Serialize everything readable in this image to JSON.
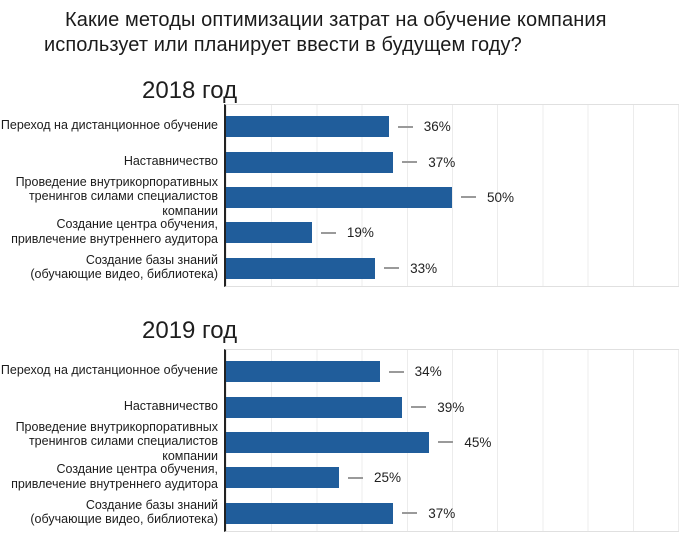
{
  "page": {
    "background": "#ffffff"
  },
  "title": {
    "text": "Какие методы оптимизации затрат на обучение компания использует или планирует ввести в будущем году?",
    "lines": [
      "Какие методы оптимизации затрат на обучение компания",
      "использует или планирует ввести в будущем году?"
    ]
  },
  "colors": {
    "bar": "#205d9b",
    "axis": "#222222",
    "gridline": "#ececec",
    "plot_border": "#e0e0e0",
    "leader_dash": "#9a9a9a",
    "text": "#1c1c1c"
  },
  "chart_data": [
    {
      "type": "bar",
      "orientation": "horizontal",
      "title": "2018 год",
      "categories": [
        "Переход на дистанционное обучение",
        "Наставничество",
        "Проведение внутрикорпоративных тренингов силами специалистов компании",
        "Создание центра обучения, привлечение внутреннего аудитора",
        "Создание базы знаний (обучающие видео, библиотека)"
      ],
      "category_lines": [
        [
          "Переход на дистанционное обучение"
        ],
        [
          "Наставничество"
        ],
        [
          "Проведение внутрикорпоративных",
          "тренингов силами специалистов",
          "компании"
        ],
        [
          "Создание центра обучения,",
          "привлечение внутреннего аудитора"
        ],
        [
          "Создание базы знаний",
          "(обучающие видео, библиотека)"
        ]
      ],
      "values": [
        36,
        37,
        50,
        19,
        33
      ],
      "value_labels": [
        "36%",
        "37%",
        "50%",
        "19%",
        "33%"
      ],
      "unit": "%",
      "xlim": [
        0,
        100
      ],
      "gridlines_every": 10,
      "grid": true,
      "legend": "none",
      "bar_color": "#205d9b"
    },
    {
      "type": "bar",
      "orientation": "horizontal",
      "title": "2019 год",
      "categories": [
        "Переход на дистанционное обучение",
        "Наставничество",
        "Проведение внутрикорпоративных тренингов силами специалистов компании",
        "Создание центра обучения, привлечение внутреннего аудитора",
        "Создание базы знаний (обучающие видео, библиотека)"
      ],
      "category_lines": [
        [
          "Переход на дистанционное обучение"
        ],
        [
          "Наставничество"
        ],
        [
          "Проведение внутрикорпоративных",
          "тренингов силами специалистов",
          "компании"
        ],
        [
          "Создание центра обучения,",
          "привлечение внутреннего аудитора"
        ],
        [
          "Создание базы знаний",
          "(обучающие видео, библиотека)"
        ]
      ],
      "values": [
        34,
        39,
        45,
        25,
        37
      ],
      "value_labels": [
        "34%",
        "39%",
        "45%",
        "25%",
        "37%"
      ],
      "unit": "%",
      "xlim": [
        0,
        100
      ],
      "gridlines_every": 10,
      "grid": true,
      "legend": "none",
      "bar_color": "#205d9b"
    }
  ]
}
